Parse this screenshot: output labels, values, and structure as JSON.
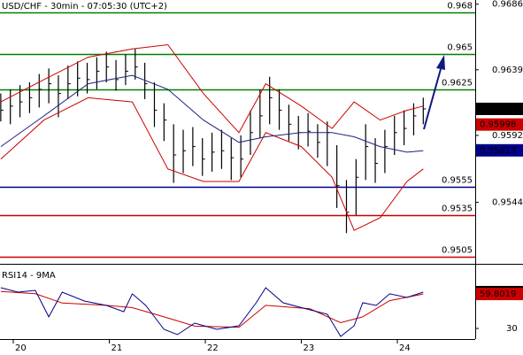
{
  "chart_data": [
    {
      "type": "ohlc",
      "title": "USD/CHF - 30min - 07:05:30 (UTC+2)",
      "xlim": [
        19.862,
        24.811
      ],
      "ylim": [
        0.95,
        0.9689
      ],
      "yticks": [
        0.9544,
        0.9592,
        0.9639,
        0.9686
      ],
      "ohlc": {
        "color": "#000000",
        "x": [
          19.87,
          19.97,
          20.07,
          20.17,
          20.27,
          20.37,
          20.47,
          20.57,
          20.67,
          20.77,
          20.87,
          20.97,
          21.07,
          21.17,
          21.27,
          21.37,
          21.47,
          21.57,
          21.67,
          21.77,
          21.87,
          21.97,
          22.07,
          22.17,
          22.27,
          22.37,
          22.47,
          22.57,
          22.67,
          22.77,
          22.87,
          22.97,
          23.07,
          23.17,
          23.27,
          23.37,
          23.47,
          23.57,
          23.67,
          23.77,
          23.87,
          23.97,
          24.07,
          24.17,
          24.27
        ],
        "high": [
          0.9622,
          0.9625,
          0.9628,
          0.963,
          0.9636,
          0.964,
          0.9635,
          0.9642,
          0.9645,
          0.9644,
          0.9648,
          0.9652,
          0.9646,
          0.965,
          0.9654,
          0.9644,
          0.963,
          0.9615,
          0.96,
          0.9596,
          0.9598,
          0.959,
          0.9594,
          0.9596,
          0.959,
          0.9592,
          0.961,
          0.9625,
          0.9634,
          0.9625,
          0.9614,
          0.9606,
          0.9608,
          0.96,
          0.9602,
          0.9585,
          0.956,
          0.9575,
          0.96,
          0.959,
          0.9596,
          0.9606,
          0.961,
          0.9615,
          0.9619
        ],
        "low": [
          0.9602,
          0.96,
          0.9605,
          0.9608,
          0.9612,
          0.9615,
          0.9605,
          0.9618,
          0.962,
          0.9622,
          0.9625,
          0.963,
          0.9624,
          0.9628,
          0.9632,
          0.9618,
          0.9598,
          0.9588,
          0.9558,
          0.9565,
          0.957,
          0.9563,
          0.9566,
          0.9568,
          0.956,
          0.9562,
          0.9578,
          0.959,
          0.96,
          0.9596,
          0.9588,
          0.9582,
          0.9584,
          0.9576,
          0.957,
          0.954,
          0.9522,
          0.9535,
          0.956,
          0.9558,
          0.9565,
          0.9578,
          0.9585,
          0.9592,
          0.96
        ],
        "close": [
          0.961,
          0.9613,
          0.9616,
          0.9619,
          0.9625,
          0.9629,
          0.9622,
          0.9629,
          0.9633,
          0.9632,
          0.9638,
          0.9641,
          0.9632,
          0.9638,
          0.9641,
          0.9629,
          0.961,
          0.9603,
          0.9578,
          0.9581,
          0.9584,
          0.9575,
          0.958,
          0.9581,
          0.9576,
          0.9575,
          0.9594,
          0.9606,
          0.9619,
          0.961,
          0.96,
          0.9594,
          0.9595,
          0.9587,
          0.9594,
          0.9556,
          0.9537,
          0.9562,
          0.9584,
          0.9572,
          0.9584,
          0.9594,
          0.9597,
          0.9606,
          0.9611
        ]
      },
      "bands": {
        "color": "#cc0000",
        "x": [
          19.87,
          20.32,
          20.78,
          21.24,
          21.61,
          21.98,
          22.35,
          22.63,
          23.0,
          23.32,
          23.55,
          23.82,
          24.1,
          24.27
        ],
        "upper": [
          0.9616,
          0.9632,
          0.9648,
          0.9654,
          0.9657,
          0.9622,
          0.9594,
          0.9629,
          0.9613,
          0.9597,
          0.9616,
          0.9603,
          0.961,
          0.9613
        ],
        "lower": [
          0.9575,
          0.9603,
          0.9619,
          0.9616,
          0.9568,
          0.9559,
          0.9559,
          0.9594,
          0.9584,
          0.9562,
          0.9524,
          0.9533,
          0.9559,
          0.9568
        ]
      },
      "ma": {
        "color": "#1a237e",
        "x": [
          19.87,
          20.32,
          20.78,
          21.24,
          21.61,
          21.98,
          22.35,
          22.63,
          23.0,
          23.32,
          23.55,
          23.82,
          24.1,
          24.27
        ],
        "values": [
          0.9584,
          0.9606,
          0.9629,
          0.9635,
          0.9625,
          0.9603,
          0.9587,
          0.9591,
          0.9594,
          0.9594,
          0.9591,
          0.9584,
          0.958,
          0.9581
        ]
      },
      "levels": [
        {
          "value": 0.968,
          "color": "#008000"
        },
        {
          "value": 0.965,
          "color": "#008000"
        },
        {
          "value": 0.9625,
          "color": "#008000"
        },
        {
          "value": 0.9555,
          "color": "#00008b"
        },
        {
          "value": 0.9535,
          "color": "#cc0000"
        },
        {
          "value": 0.9505,
          "color": "#cc0000"
        }
      ],
      "price_markers": [
        {
          "value": 0.9611,
          "color": "#000000"
        },
        {
          "value": 0.95998,
          "color": "#cc0000"
        },
        {
          "value": 0.95813,
          "color": "#00008b"
        }
      ]
    },
    {
      "type": "line",
      "title": "RSI14 - 9MA",
      "xlim": [
        19.862,
        24.811
      ],
      "xticks": [
        20,
        21,
        22,
        23,
        24
      ],
      "ylim": [
        20.8,
        81.3
      ],
      "yticks": [
        30
      ],
      "color": "#00008b",
      "x": [
        19.87,
        20.05,
        20.23,
        20.37,
        20.51,
        20.74,
        20.97,
        21.15,
        21.24,
        21.38,
        21.57,
        21.71,
        21.89,
        22.12,
        22.35,
        22.53,
        22.63,
        22.81,
        23.09,
        23.27,
        23.41,
        23.55,
        23.64,
        23.78,
        23.92,
        24.1,
        24.27
      ],
      "values": [
        65.2,
        61.4,
        62.9,
        40.0,
        61.4,
        53.7,
        49.9,
        44.5,
        59.9,
        49.9,
        29.2,
        24.6,
        34.6,
        29.2,
        32.3,
        52.2,
        65.2,
        52.2,
        46.1,
        42.3,
        23.1,
        32.3,
        52.2,
        49.9,
        59.9,
        56.8,
        61.4077
      ],
      "ma": {
        "color": "#cc0000",
        "x": [
          19.87,
          20.23,
          20.51,
          20.97,
          21.24,
          21.57,
          21.89,
          22.35,
          22.63,
          23.09,
          23.41,
          23.64,
          23.92,
          24.27
        ],
        "values": [
          62,
          60,
          52,
          50,
          48,
          40,
          32,
          31,
          50,
          47,
          35,
          40,
          54,
          59.8019
        ]
      },
      "price_markers": [
        {
          "value": 61.4077,
          "color": "#000000"
        },
        {
          "value": 59.8019,
          "color": "#cc0000"
        }
      ]
    }
  ]
}
